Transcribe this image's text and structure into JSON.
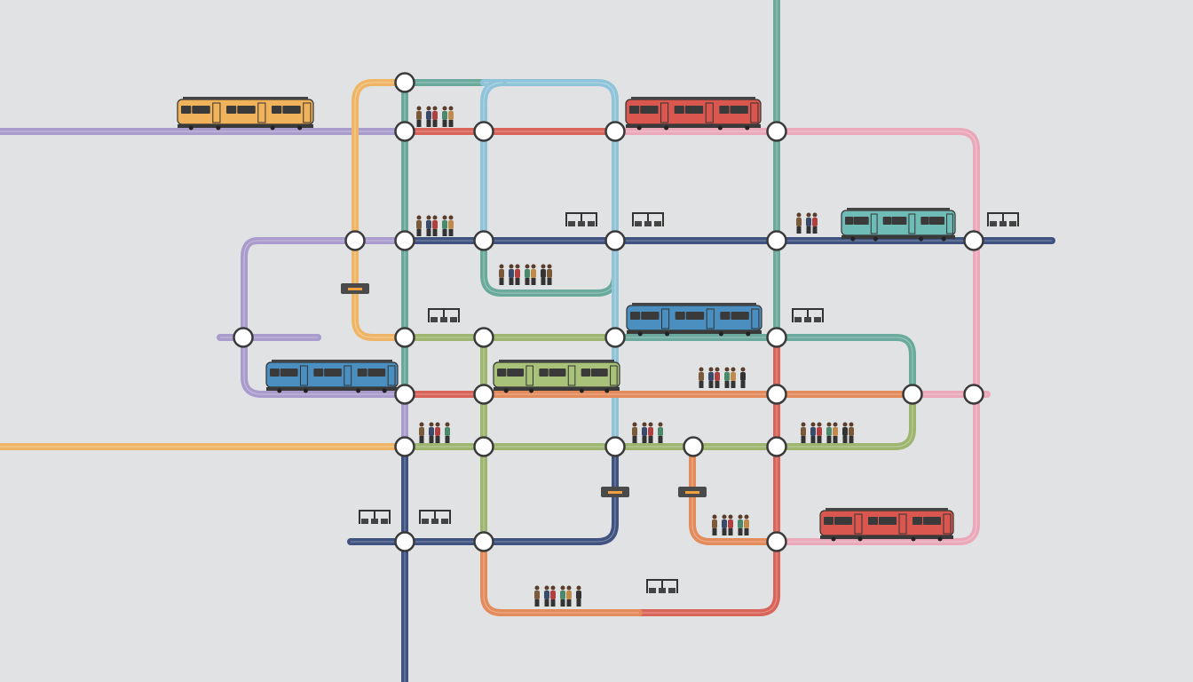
{
  "background": "#e1e2e3",
  "line_colors": {
    "purple": "#a99ccc",
    "orange": "#efb567",
    "teal": "#6aaa9c",
    "lightblue": "#8ec3d9",
    "red": "#d9645a",
    "pink": "#eba8bb",
    "navy": "#3f5280",
    "green": "#9db56e",
    "coral": "#e48b5c"
  },
  "trains": [
    {
      "color": "#f0b25a",
      "icon": "tram-icon"
    },
    {
      "color": "#d9574f",
      "icon": "tram-icon"
    },
    {
      "color": "#6fbcb6",
      "icon": "tram-icon"
    },
    {
      "color": "#4a8fc0",
      "icon": "tram-icon"
    },
    {
      "color": "#4a8fc0",
      "icon": "tram-icon"
    },
    {
      "color": "#a9c27a",
      "icon": "tram-icon"
    },
    {
      "color": "#d9574f",
      "icon": "tram-icon"
    }
  ],
  "icons": {
    "station": "station-circle-icon",
    "platform": "platform-bench-icon",
    "people": "passenger-group-icon",
    "signal": "signal-sign-icon"
  }
}
